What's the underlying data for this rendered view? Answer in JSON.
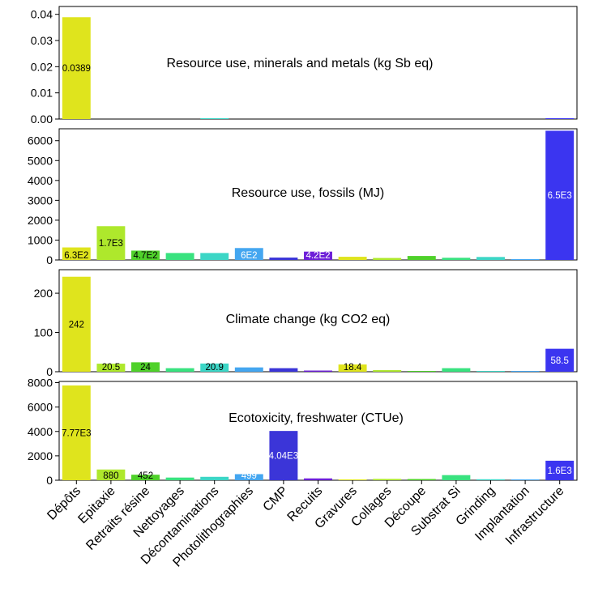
{
  "chart_data": [
    {
      "type": "bar",
      "title": "Resource use, minerals and metals (kg Sb eq)",
      "categories": [
        "Dépôts",
        "Epitaxie",
        "Retraits résine",
        "Nettoyages",
        "Décontaminations",
        "Photolithographies",
        "CMP",
        "Recuits",
        "Gravures",
        "Collages",
        "Découpe",
        "Substrat Si",
        "Grinding",
        "Implantation",
        "Infrastructure"
      ],
      "values": [
        0.0389,
        0,
        0,
        0,
        0.0001,
        0,
        0,
        0,
        0,
        0,
        0,
        0,
        0,
        0,
        0.0003
      ],
      "data_labels": [
        "0.0389",
        "",
        "",
        "",
        "",
        "",
        "",
        "",
        "",
        "",
        "",
        "",
        "",
        "",
        ""
      ],
      "ylim": [
        0,
        0.043
      ],
      "yticks": [
        "0.00",
        "0.01",
        "0.02",
        "0.03",
        "0.04"
      ],
      "ytick_values": [
        0,
        0.01,
        0.02,
        0.03,
        0.04
      ]
    },
    {
      "type": "bar",
      "title": "Resource use, fossils (MJ)",
      "categories": [
        "Dépôts",
        "Epitaxie",
        "Retraits résine",
        "Nettoyages",
        "Décontaminations",
        "Photolithographies",
        "CMP",
        "Recuits",
        "Gravures",
        "Collages",
        "Découpe",
        "Substrat Si",
        "Grinding",
        "Implantation",
        "Infrastructure"
      ],
      "values": [
        630,
        1700,
        470,
        350,
        350,
        600,
        120,
        420,
        160,
        100,
        200,
        110,
        150,
        40,
        6500
      ],
      "data_labels": [
        "6.3E2",
        "1.7E3",
        "4.7E2",
        "",
        "",
        "6E2",
        "",
        "4.2E2",
        "",
        "",
        "",
        "",
        "",
        "",
        "6.5E3"
      ],
      "ylim": [
        0,
        6600
      ],
      "yticks": [
        "0",
        "1000",
        "2000",
        "3000",
        "4000",
        "5000",
        "6000"
      ],
      "ytick_values": [
        0,
        1000,
        2000,
        3000,
        4000,
        5000,
        6000
      ]
    },
    {
      "type": "bar",
      "title": "Climate change (kg CO2 eq)",
      "categories": [
        "Dépôts",
        "Epitaxie",
        "Retraits résine",
        "Nettoyages",
        "Décontaminations",
        "Photolithographies",
        "CMP",
        "Recuits",
        "Gravures",
        "Collages",
        "Découpe",
        "Substrat Si",
        "Grinding",
        "Implantation",
        "Infrastructure"
      ],
      "values": [
        242,
        20.5,
        24,
        9,
        20.9,
        11,
        9,
        3,
        18.4,
        4,
        1,
        9,
        1,
        1,
        58.5
      ],
      "data_labels": [
        "242",
        "20.5",
        "24",
        "",
        "20.9",
        "",
        "",
        "",
        "18.4",
        "",
        "",
        "",
        "",
        "",
        "58.5"
      ],
      "ylim": [
        0,
        260
      ],
      "yticks": [
        "0",
        "100",
        "200"
      ],
      "ytick_values": [
        0,
        100,
        200
      ]
    },
    {
      "type": "bar",
      "title": "Ecotoxicity, freshwater (CTUe)",
      "categories": [
        "Dépôts",
        "Epitaxie",
        "Retraits résine",
        "Nettoyages",
        "Décontaminations",
        "Photolithographies",
        "CMP",
        "Recuits",
        "Gravures",
        "Collages",
        "Découpe",
        "Substrat Si",
        "Grinding",
        "Implantation",
        "Infrastructure"
      ],
      "values": [
        7770,
        880,
        452,
        220,
        280,
        499,
        4040,
        150,
        60,
        110,
        100,
        420,
        80,
        20,
        1600
      ],
      "data_labels": [
        "7.77E3",
        "880",
        "452",
        "",
        "",
        "499",
        "4.04E3",
        "",
        "",
        "",
        "",
        "",
        "",
        "",
        "1.6E3"
      ],
      "ylim": [
        0,
        8100
      ],
      "yticks": [
        "0",
        "2000",
        "4000",
        "6000",
        "8000"
      ],
      "ytick_values": [
        0,
        2000,
        4000,
        6000,
        8000
      ]
    }
  ],
  "categories": [
    "Dépôts",
    "Epitaxie",
    "Retraits résine",
    "Nettoyages",
    "Décontaminations",
    "Photolithographies",
    "CMP",
    "Recuits",
    "Gravures",
    "Collages",
    "Découpe",
    "Substrat Si",
    "Grinding",
    "Implantation",
    "Infrastructure"
  ],
  "colors": [
    "#dfe41d",
    "#aee82c",
    "#4fd12a",
    "#39e27f",
    "#3cd6c6",
    "#44a6f0",
    "#3b35d8",
    "#6d1fd8",
    "#dfe41d",
    "#aee82c",
    "#4fd12a",
    "#39e27f",
    "#3cd6c6",
    "#44a6f0",
    "#3b35f0"
  ],
  "label_colors": [
    "#000000",
    "#000000",
    "#000000",
    "#000000",
    "#000000",
    "#ffffff",
    "#ffffff",
    "#ffffff",
    "#000000",
    "#000000",
    "#000000",
    "#000000",
    "#000000",
    "#ffffff",
    "#ffffff"
  ]
}
